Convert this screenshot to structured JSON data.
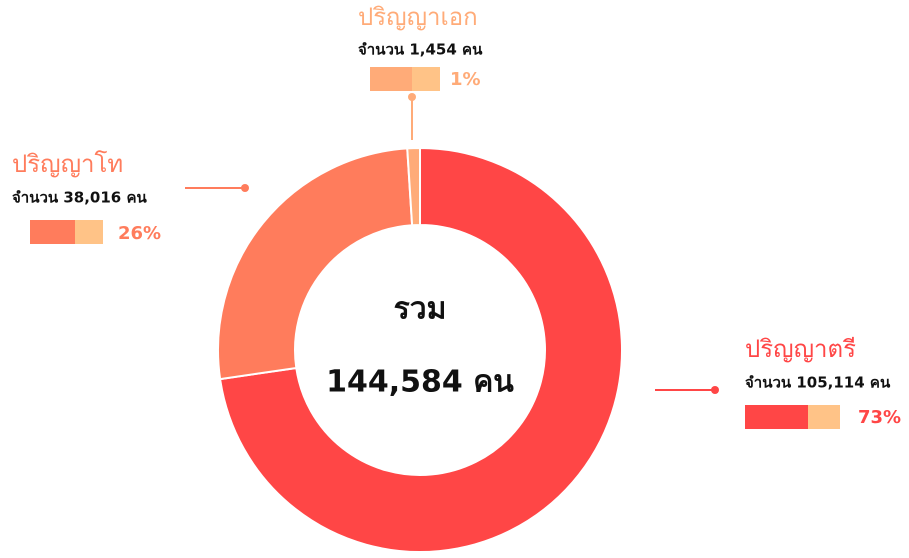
{
  "chart_data": {
    "type": "donut",
    "center_title": "รวม",
    "center_label": "144,584 คน",
    "categories": [
      "ปริญญาตรี",
      "ปริญญาโท",
      "ปริญญาเอก"
    ],
    "values": [
      105114,
      38016,
      1454
    ],
    "value_labels": [
      "จำนวน 105,114 คน",
      "จำนวน 38,016 คน",
      "จำนวน 1,454 คน"
    ],
    "percents": [
      73,
      26,
      1
    ],
    "percent_labels": [
      "73%",
      "26%",
      "1%"
    ],
    "colors": [
      "#ff4646",
      "#ff7c5c",
      "#ffab78"
    ]
  }
}
